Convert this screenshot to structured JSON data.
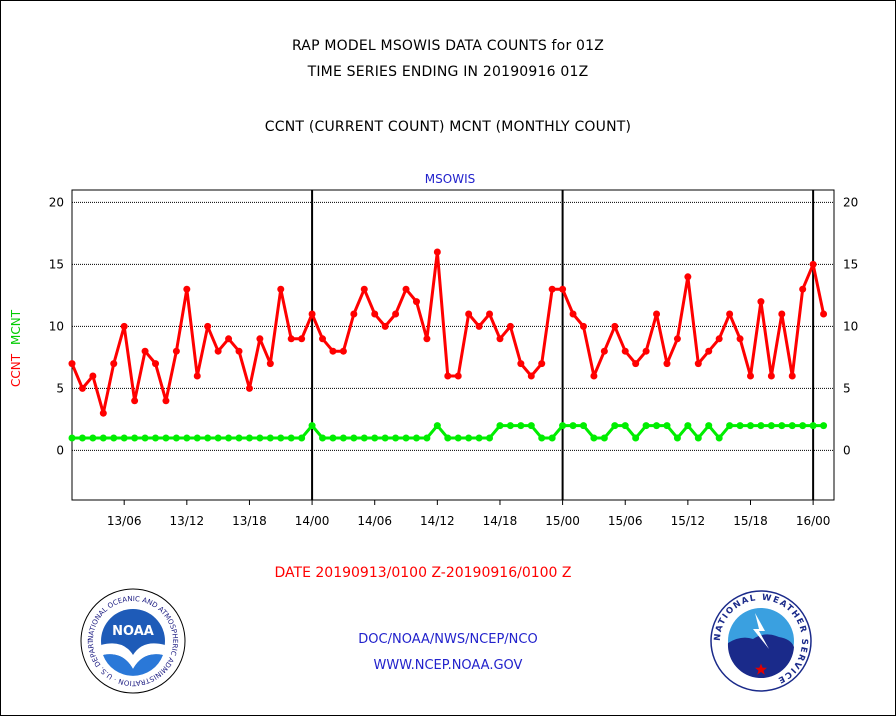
{
  "header": {
    "line1": "RAP MODEL MSOWIS DATA COUNTS for 01Z",
    "line2": "TIME SERIES ENDING IN 20190916 01Z",
    "line3": "CCNT (CURRENT COUNT) MCNT (MONTHLY COUNT)"
  },
  "footer": {
    "date_range": "DATE 20190913/0100 Z-20190916/0100 Z",
    "org": "DOC/NOAA/NWS/NCEP/NCO",
    "url": "WWW.NCEP.NOAA.GOV"
  },
  "logos": {
    "noaa_text": "NOAA",
    "noaa_ring": "NATIONAL OCEANIC AND ATMOSPHERIC ADMINISTRATION · U.S. DEPARTMENT OF COMMERCE",
    "nws_ring": "NATIONAL WEATHER SERVICE"
  },
  "chart_data": {
    "type": "line",
    "title": "MSOWIS",
    "ylabel_ccnt": "CCNT",
    "ylabel_mcnt": "MCNT",
    "ylim": [
      -4,
      21
    ],
    "y_ticks": [
      0,
      5,
      10,
      15,
      20
    ],
    "xlim": [
      0,
      73
    ],
    "x_tick_labels": [
      "13/06",
      "13/12",
      "13/18",
      "14/00",
      "14/06",
      "14/12",
      "14/18",
      "15/00",
      "15/06",
      "15/12",
      "15/18",
      "16/00"
    ],
    "x_tick_hours": [
      5,
      11,
      17,
      23,
      29,
      35,
      41,
      47,
      53,
      59,
      65,
      71
    ],
    "day_boundaries": [
      23,
      47,
      71
    ],
    "grid": true,
    "series": [
      {
        "name": "CCNT",
        "color": "#ff0000",
        "values": [
          7,
          5,
          6,
          3,
          7,
          10,
          4,
          8,
          7,
          4,
          8,
          13,
          6,
          10,
          8,
          9,
          8,
          5,
          9,
          7,
          13,
          9,
          9,
          11,
          9,
          8,
          8,
          11,
          13,
          11,
          10,
          11,
          13,
          12,
          9,
          16,
          6,
          6,
          11,
          10,
          11,
          9,
          10,
          7,
          6,
          7,
          13,
          13,
          11,
          10,
          6,
          8,
          10,
          8,
          7,
          8,
          11,
          7,
          9,
          14,
          7,
          8,
          9,
          11,
          9,
          6,
          12,
          6,
          11,
          6,
          13,
          15,
          11
        ]
      },
      {
        "name": "MCNT",
        "color": "#00ee00",
        "values": [
          1,
          1,
          1,
          1,
          1,
          1,
          1,
          1,
          1,
          1,
          1,
          1,
          1,
          1,
          1,
          1,
          1,
          1,
          1,
          1,
          1,
          1,
          1,
          2,
          1,
          1,
          1,
          1,
          1,
          1,
          1,
          1,
          1,
          1,
          1,
          2,
          1,
          1,
          1,
          1,
          1,
          2,
          2,
          2,
          2,
          1,
          1,
          2,
          2,
          2,
          1,
          1,
          2,
          2,
          1,
          2,
          2,
          2,
          1,
          2,
          1,
          2,
          1,
          2,
          2,
          2,
          2,
          2,
          2,
          2,
          2,
          2,
          2
        ]
      }
    ]
  }
}
